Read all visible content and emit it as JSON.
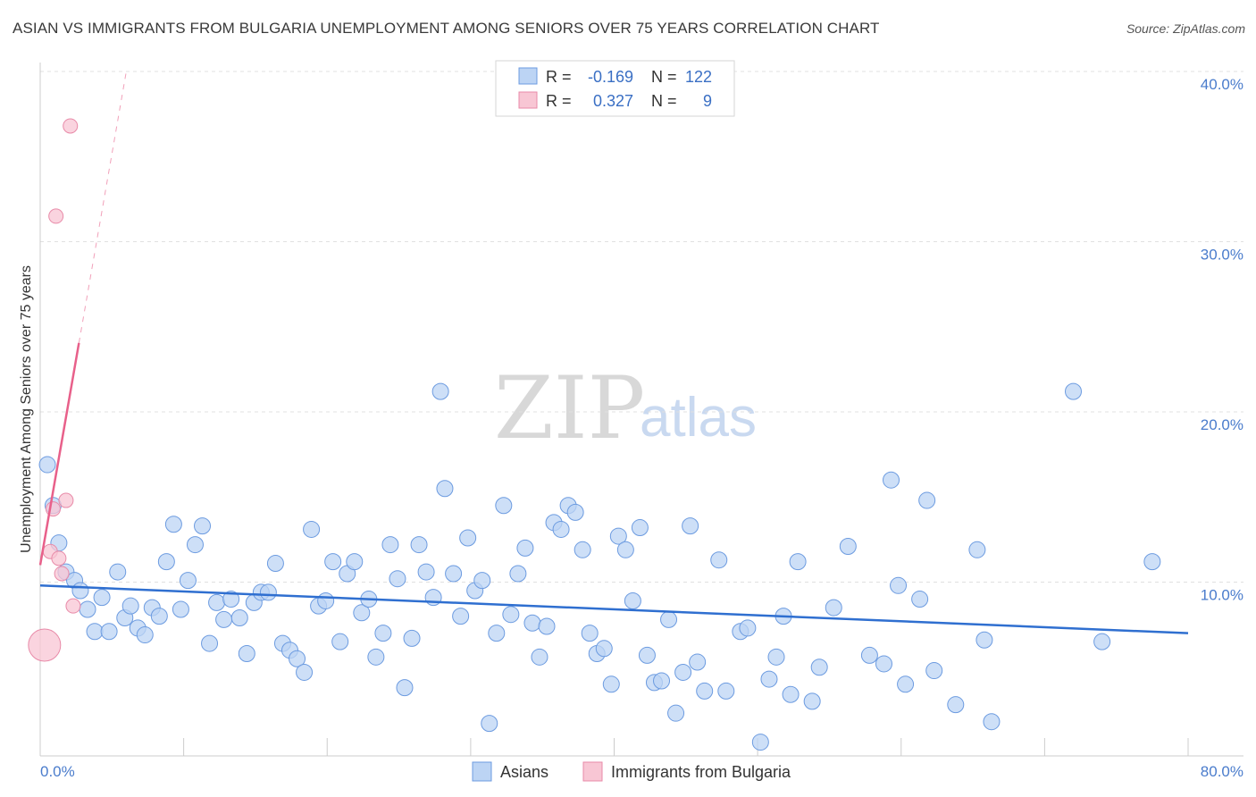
{
  "title": "ASIAN VS IMMIGRANTS FROM BULGARIA UNEMPLOYMENT AMONG SENIORS OVER 75 YEARS CORRELATION CHART",
  "source": "Source: ZipAtlas.com",
  "watermark": {
    "zip": "ZIP",
    "atlas": "atlas"
  },
  "legend": {
    "r_label": "R =",
    "n_label": "N =",
    "asians": {
      "r": "-0.169",
      "n": "122"
    },
    "bulgaria": {
      "r": "0.327",
      "n": "9"
    }
  },
  "colors": {
    "asian_fill": "#bcd4f4",
    "asian_stroke": "#6c9be0",
    "asian_line": "#2f6fd0",
    "bulg_fill": "#f8c6d4",
    "bulg_stroke": "#e88aa8",
    "bulg_line": "#e8608a"
  },
  "chart_data": {
    "type": "scatter",
    "title": "ASIAN VS IMMIGRANTS FROM BULGARIA UNEMPLOYMENT AMONG SENIORS OVER 75 YEARS CORRELATION CHART",
    "xlabel": "",
    "ylabel": "Unemployment Among Seniors over 75 years",
    "xlim": [
      0,
      80
    ],
    "ylim": [
      0,
      40
    ],
    "x_tick_labels": [
      "0.0%",
      "80.0%"
    ],
    "y_tick_labels": [
      "10.0%",
      "20.0%",
      "30.0%",
      "40.0%"
    ],
    "y_ticks": [
      10,
      20,
      30,
      40
    ],
    "bottom_legend": [
      "Asians",
      "Immigrants from Bulgaria"
    ],
    "series": [
      {
        "name": "Asians",
        "trend": {
          "x0": 0,
          "y0": 9.8,
          "x1": 80,
          "y1": 7.0
        },
        "points": [
          [
            0.5,
            16.9
          ],
          [
            0.9,
            14.5
          ],
          [
            1.3,
            12.3
          ],
          [
            1.8,
            10.6
          ],
          [
            2.4,
            10.1
          ],
          [
            2.8,
            9.5
          ],
          [
            3.3,
            8.4
          ],
          [
            3.8,
            7.1
          ],
          [
            4.3,
            9.1
          ],
          [
            4.8,
            7.1
          ],
          [
            5.4,
            10.6
          ],
          [
            5.9,
            7.9
          ],
          [
            6.3,
            8.6
          ],
          [
            6.8,
            7.3
          ],
          [
            7.3,
            6.9
          ],
          [
            7.8,
            8.5
          ],
          [
            8.3,
            8.0
          ],
          [
            8.8,
            11.2
          ],
          [
            9.3,
            13.4
          ],
          [
            9.8,
            8.4
          ],
          [
            10.3,
            10.1
          ],
          [
            10.8,
            12.2
          ],
          [
            11.3,
            13.3
          ],
          [
            11.8,
            6.4
          ],
          [
            12.3,
            8.8
          ],
          [
            12.8,
            7.8
          ],
          [
            13.3,
            9.0
          ],
          [
            13.9,
            7.9
          ],
          [
            14.4,
            5.8
          ],
          [
            14.9,
            8.8
          ],
          [
            15.4,
            9.4
          ],
          [
            15.9,
            9.4
          ],
          [
            16.4,
            11.1
          ],
          [
            16.9,
            6.4
          ],
          [
            17.4,
            6.0
          ],
          [
            17.9,
            5.5
          ],
          [
            18.4,
            4.7
          ],
          [
            18.9,
            13.1
          ],
          [
            19.4,
            8.6
          ],
          [
            19.9,
            8.9
          ],
          [
            20.4,
            11.2
          ],
          [
            20.9,
            6.5
          ],
          [
            21.4,
            10.5
          ],
          [
            21.9,
            11.2
          ],
          [
            22.4,
            8.2
          ],
          [
            22.9,
            9.0
          ],
          [
            23.4,
            5.6
          ],
          [
            23.9,
            7.0
          ],
          [
            24.4,
            12.2
          ],
          [
            24.9,
            10.2
          ],
          [
            25.4,
            3.8
          ],
          [
            25.9,
            6.7
          ],
          [
            26.4,
            12.2
          ],
          [
            26.9,
            10.6
          ],
          [
            27.4,
            9.1
          ],
          [
            27.9,
            21.2
          ],
          [
            28.2,
            15.5
          ],
          [
            28.8,
            10.5
          ],
          [
            29.3,
            8.0
          ],
          [
            29.8,
            12.6
          ],
          [
            30.3,
            9.5
          ],
          [
            30.8,
            10.1
          ],
          [
            31.3,
            1.7
          ],
          [
            31.8,
            7.0
          ],
          [
            32.3,
            14.5
          ],
          [
            32.8,
            8.1
          ],
          [
            33.3,
            10.5
          ],
          [
            33.8,
            12.0
          ],
          [
            34.3,
            7.6
          ],
          [
            34.8,
            5.6
          ],
          [
            35.3,
            7.4
          ],
          [
            35.8,
            13.5
          ],
          [
            36.3,
            13.1
          ],
          [
            36.8,
            14.5
          ],
          [
            37.3,
            14.1
          ],
          [
            37.8,
            11.9
          ],
          [
            38.3,
            7.0
          ],
          [
            38.8,
            5.8
          ],
          [
            39.3,
            6.1
          ],
          [
            39.8,
            4.0
          ],
          [
            40.3,
            12.7
          ],
          [
            40.8,
            11.9
          ],
          [
            41.3,
            8.9
          ],
          [
            41.8,
            13.2
          ],
          [
            42.3,
            5.7
          ],
          [
            42.8,
            4.1
          ],
          [
            43.3,
            4.2
          ],
          [
            43.8,
            7.8
          ],
          [
            44.3,
            2.3
          ],
          [
            44.8,
            4.7
          ],
          [
            45.3,
            13.3
          ],
          [
            45.8,
            5.3
          ],
          [
            46.3,
            3.6
          ],
          [
            47.3,
            11.3
          ],
          [
            47.8,
            3.6
          ],
          [
            48.8,
            7.1
          ],
          [
            49.3,
            7.3
          ],
          [
            50.2,
            0.6
          ],
          [
            50.8,
            4.3
          ],
          [
            51.3,
            5.6
          ],
          [
            51.8,
            8.0
          ],
          [
            52.3,
            3.4
          ],
          [
            52.8,
            11.2
          ],
          [
            53.8,
            3.0
          ],
          [
            54.3,
            5.0
          ],
          [
            55.3,
            8.5
          ],
          [
            56.3,
            12.1
          ],
          [
            57.8,
            5.7
          ],
          [
            58.8,
            5.2
          ],
          [
            59.3,
            16.0
          ],
          [
            59.8,
            9.8
          ],
          [
            60.3,
            4.0
          ],
          [
            61.3,
            9.0
          ],
          [
            61.8,
            14.8
          ],
          [
            62.3,
            4.8
          ],
          [
            63.8,
            2.8
          ],
          [
            65.3,
            11.9
          ],
          [
            65.8,
            6.6
          ],
          [
            66.3,
            1.8
          ],
          [
            72.0,
            21.2
          ],
          [
            74.0,
            6.5
          ],
          [
            77.5,
            11.2
          ]
        ]
      },
      {
        "name": "Immigrants from Bulgaria",
        "trend": {
          "x0": 0,
          "y0": 11.0,
          "x1": 6.0,
          "y1": 40.0
        },
        "points": [
          [
            0.3,
            6.3
          ],
          [
            0.7,
            11.8
          ],
          [
            0.9,
            14.3
          ],
          [
            1.1,
            31.5
          ],
          [
            1.3,
            11.4
          ],
          [
            1.5,
            10.5
          ],
          [
            1.8,
            14.8
          ],
          [
            2.1,
            36.8
          ],
          [
            2.3,
            8.6
          ]
        ]
      }
    ]
  }
}
